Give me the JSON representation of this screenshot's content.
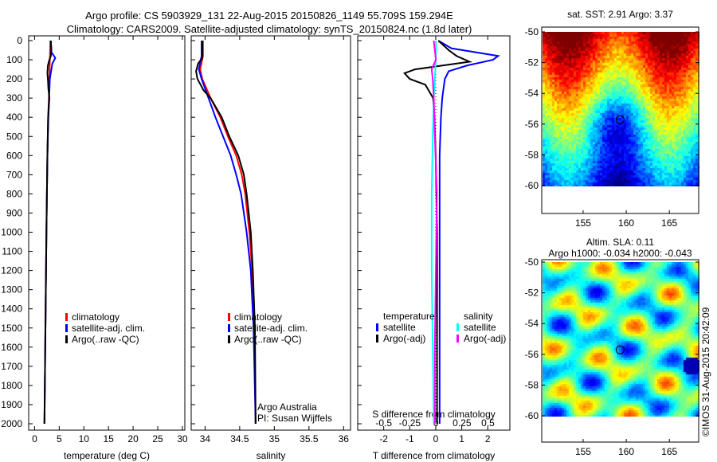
{
  "title_line1": "Argo profile: CS 5903929_131 22-Aug-2015 20150826_1149 55.709S 159.294E",
  "title_line2": "Climatology: CARS2009. Satellite-adjusted climatology: synTS_20150824.nc (1.8d later)",
  "colors": {
    "climatology": "#ff0000",
    "satellite": "#0000ff",
    "argo": "#000000",
    "sal_sat": "#00ffff",
    "sal_argo": "#ff00ff"
  },
  "chart_data": [
    {
      "type": "line",
      "xlabel": "temperature (deg C)",
      "ylabel": "",
      "xlim": [
        -1.2,
        30.5
      ],
      "ylim": [
        2050,
        0
      ],
      "xticks": [
        "0",
        "5",
        "10",
        "15",
        "20",
        "25",
        "30"
      ],
      "xtickvals": [
        0,
        5,
        10,
        15,
        20,
        25,
        30
      ],
      "yticks": [
        "0",
        "100",
        "200",
        "300",
        "400",
        "500",
        "600",
        "700",
        "800",
        "900",
        "1000",
        "1100",
        "1200",
        "1300",
        "1400",
        "1500",
        "1600",
        "1700",
        "1800",
        "1900",
        "2000"
      ],
      "legend": [
        "climatology",
        "satellite-adj. clim.",
        "Argo(..raw -QC)"
      ],
      "series": [
        {
          "name": "climatology",
          "color": "#ff0000",
          "depth": [
            0,
            100,
            200,
            300,
            400,
            600,
            1000,
            1500,
            2000
          ],
          "values": [
            3.2,
            3.1,
            3.0,
            2.9,
            2.75,
            2.6,
            2.4,
            2.2,
            2.0
          ]
        },
        {
          "name": "satellite-adj. clim.",
          "color": "#0000ff",
          "depth": [
            0,
            60,
            90,
            120,
            200,
            300,
            400,
            600,
            1000,
            1500,
            2000
          ],
          "values": [
            3.3,
            3.4,
            4.2,
            3.6,
            3.1,
            2.95,
            2.8,
            2.6,
            2.4,
            2.2,
            2.0
          ]
        },
        {
          "name": "Argo(..raw -QC)",
          "color": "#000000",
          "depth": [
            0,
            50,
            80,
            100,
            130,
            170,
            200,
            250,
            300,
            400,
            600,
            1000,
            1500,
            2000
          ],
          "values": [
            3.3,
            3.4,
            3.3,
            3.0,
            2.7,
            2.6,
            2.7,
            2.8,
            3.0,
            2.75,
            2.6,
            2.4,
            2.2,
            2.0
          ]
        }
      ]
    },
    {
      "type": "line",
      "xlabel": "salinity",
      "xlim": [
        33.8,
        36.1
      ],
      "ylim": [
        2050,
        0
      ],
      "xticks": [
        "34",
        "34.5",
        "35",
        "35.5",
        "36"
      ],
      "xtickvals": [
        34,
        34.5,
        35,
        35.5,
        36
      ],
      "legend": [
        "climatology",
        "satellite-adj. clim.",
        "Argo(..raw -QC)"
      ],
      "annotation": [
        "Argo Australia",
        "PI: Susan Wijffels"
      ],
      "series": [
        {
          "name": "climatology",
          "color": "#ff0000",
          "depth": [
            0,
            80,
            150,
            200,
            300,
            400,
            500,
            600,
            700,
            800,
            1000,
            1200,
            1500,
            2000
          ],
          "values": [
            33.97,
            33.97,
            33.93,
            33.96,
            34.08,
            34.22,
            34.33,
            34.45,
            34.53,
            34.58,
            34.64,
            34.68,
            34.71,
            34.73
          ]
        },
        {
          "name": "satellite-adj. clim.",
          "color": "#0000ff",
          "depth": [
            0,
            80,
            150,
            200,
            300,
            400,
            500,
            600,
            700,
            800,
            1000,
            1200,
            1500,
            2000
          ],
          "values": [
            33.95,
            33.95,
            33.91,
            33.95,
            34.05,
            34.15,
            34.26,
            34.37,
            34.45,
            34.52,
            34.6,
            34.66,
            34.7,
            34.73
          ]
        },
        {
          "name": "Argo(..raw -QC)",
          "color": "#000000",
          "depth": [
            0,
            90,
            120,
            160,
            200,
            260,
            300,
            400,
            500,
            600,
            700,
            800,
            1000,
            1200,
            1500,
            2000
          ],
          "values": [
            33.96,
            33.96,
            33.9,
            33.87,
            33.89,
            33.98,
            34.08,
            34.24,
            34.35,
            34.48,
            34.56,
            34.6,
            34.66,
            34.69,
            34.72,
            34.73
          ]
        }
      ]
    },
    {
      "type": "line",
      "xlabel": "T difference from climatology",
      "x2label": "S difference from climatology",
      "xlim": [
        -3,
        2.85
      ],
      "x2lim": [
        -0.75,
        0.71
      ],
      "ylim": [
        2050,
        0
      ],
      "xticks": [
        "-2",
        "-1",
        "0",
        "1",
        "2"
      ],
      "xtickvals": [
        -2,
        -1,
        0,
        1,
        2
      ],
      "x2ticks": [
        "-0.5",
        "-0.25",
        "0",
        "0.25",
        "0.5"
      ],
      "x2tickvals": [
        -0.5,
        -0.25,
        0,
        0.25,
        0.5
      ],
      "legend": {
        "temperature": "temperature",
        "salinity": "salinity",
        "sat": "satellite",
        "argo": "Argo(-adj)"
      },
      "series": [
        {
          "name": "T satellite",
          "color": "#0000ff",
          "axis": "T",
          "depth": [
            0,
            40,
            80,
            100,
            130,
            160,
            200,
            250,
            300,
            400,
            600,
            1000,
            1500,
            2000
          ],
          "values": [
            0.1,
            0.6,
            2.4,
            2.2,
            1.2,
            0.5,
            0.35,
            0.3,
            0.25,
            0.2,
            0.15,
            0.15,
            0.15,
            0.15
          ]
        },
        {
          "name": "T Argo(-adj)",
          "color": "#000000",
          "axis": "T",
          "depth": [
            0,
            50,
            80,
            110,
            150,
            170,
            200,
            230,
            300,
            400,
            600,
            1000,
            1500,
            2000
          ],
          "values": [
            0.1,
            0.5,
            0.8,
            1.3,
            -0.8,
            -1.2,
            -1.0,
            -0.4,
            -0.1,
            -0.05,
            0,
            0.05,
            0.05,
            0.05
          ]
        },
        {
          "name": "S satellite",
          "color": "#00ffff",
          "axis": "S",
          "depth": [
            0,
            100,
            200,
            300,
            500,
            800,
            1200,
            1600,
            2000
          ],
          "values": [
            0.0,
            0.0,
            -0.01,
            -0.02,
            -0.03,
            -0.04,
            -0.04,
            -0.03,
            -0.02
          ]
        },
        {
          "name": "S Argo(-adj)",
          "color": "#ff00ff",
          "axis": "S",
          "depth": [
            0,
            50,
            100,
            150,
            200,
            300,
            500,
            800,
            1200,
            1600,
            2000
          ],
          "values": [
            -0.02,
            -0.01,
            0.0,
            -0.04,
            -0.03,
            -0.02,
            -0.01,
            0.01,
            0.0,
            -0.01,
            -0.01
          ]
        }
      ]
    },
    {
      "type": "heatmap",
      "title": "sat. SST: 2.91 Argo: 3.37",
      "xticks": [
        "155",
        "160",
        "165"
      ],
      "xtickvals": [
        155,
        160,
        165
      ],
      "yticks": [
        "-50",
        "-52",
        "-54",
        "-56",
        "-58",
        "-60"
      ],
      "ytickvals": [
        -50,
        -52,
        -54,
        -56,
        -58,
        -60
      ],
      "xlim": [
        150.2,
        168.4
      ],
      "ylim": [
        -61.8,
        -49.7
      ],
      "marker": {
        "lon": 159.294,
        "lat": -55.709
      }
    },
    {
      "type": "heatmap",
      "title": "Altim. SLA: 0.11",
      "subtitle": "Argo h1000: -0.034 h2000: -0.043",
      "xticks": [
        "155",
        "160",
        "165"
      ],
      "xtickvals": [
        155,
        160,
        165
      ],
      "yticks": [
        "-50",
        "-52",
        "-54",
        "-56",
        "-58",
        "-60"
      ],
      "ytickvals": [
        -50,
        -52,
        -54,
        -56,
        -58,
        -60
      ],
      "xlim": [
        150.2,
        168.4
      ],
      "ylim": [
        -61.8,
        -49.7
      ],
      "marker": {
        "lon": 159.294,
        "lat": -55.709
      }
    }
  ],
  "credit": "©IMOS 31-Aug-2015 20:42:09"
}
